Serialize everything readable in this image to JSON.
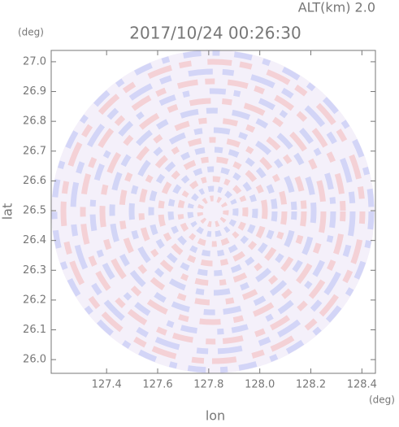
{
  "chart_data": {
    "type": "radar-ppi",
    "title": "2017/10/24 00:26:30",
    "subtitle": "ALT(km) 2.0",
    "x_label": "lon",
    "y_label": "lat",
    "x_unit": "(deg)",
    "y_unit": "(deg)",
    "xlim": [
      127.183,
      128.453
    ],
    "ylim": [
      25.954,
      27.038
    ],
    "xticks": [
      127.4,
      127.6,
      127.8,
      {
        "value": 128,
        "label": "128.0"
      },
      128.2,
      128.4
    ],
    "yticks": [
      {
        "value": 26,
        "label": "26.0"
      },
      26.1,
      26.2,
      26.3,
      26.4,
      26.5,
      26.6,
      26.7,
      26.8,
      26.9,
      {
        "value": 27,
        "label": "27.0"
      }
    ]
  }
}
